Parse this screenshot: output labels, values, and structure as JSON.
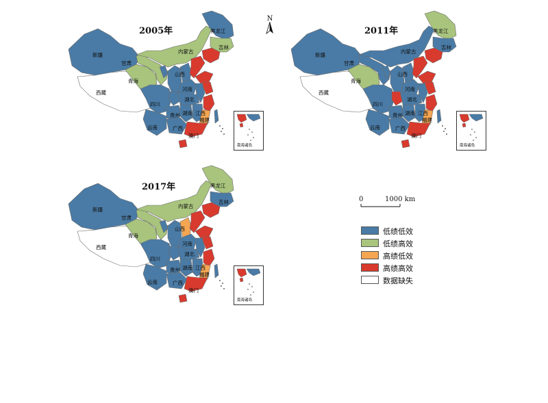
{
  "colors": {
    "low_low": "#4a7ba6",
    "low_high": "#a8c47d",
    "high_low": "#f4a653",
    "high_high": "#d93a2e",
    "missing": "#ffffff"
  },
  "north_label": "N",
  "scale": {
    "start": "0",
    "end": "1000 km"
  },
  "legend": [
    {
      "label": "低绩低效",
      "category": "low_low"
    },
    {
      "label": "低绩高效",
      "category": "low_high"
    },
    {
      "label": "高绩低效",
      "category": "high_low"
    },
    {
      "label": "高绩高效",
      "category": "high_high"
    },
    {
      "label": "数据缺失",
      "category": "missing"
    }
  ],
  "inset_label": "南海诸岛",
  "maps": [
    {
      "year": "2005年",
      "labels": {
        "xinjiang": "新疆",
        "xizang": "西藏",
        "qinghai": "青海",
        "gansu": "甘肃",
        "neimenggu": "内蒙古",
        "heilongjiang": "黑龙江",
        "jilin": "吉林",
        "sichuan": "四川",
        "yunnan": "云南",
        "guizhou": "贵州",
        "guangxi": "广西",
        "hunan": "湖南",
        "hubei": "湖北",
        "henan": "河南",
        "jiangxi": "江西",
        "fujian": "福建",
        "aomen": "澳门",
        "shanxi": "山西"
      },
      "regions": {
        "xinjiang": "low_low",
        "xizang": "missing",
        "qinghai": "low_high",
        "gansu": "low_high",
        "neimenggu": "low_high",
        "heilongjiang": "low_low",
        "jilin": "low_high",
        "liaoning": "high_high",
        "ningxia": "low_low",
        "shaanxi": "low_low",
        "shanxi": "low_low",
        "hebei": "high_high",
        "shandong": "high_high",
        "henan": "low_low",
        "sichuan": "low_low",
        "chongqing": "low_low",
        "hubei": "low_low",
        "anhui": "low_low",
        "jiangsu": "high_high",
        "zhejiang": "high_high",
        "yunnan": "low_low",
        "guizhou": "low_low",
        "hunan": "low_low",
        "jiangxi": "low_low",
        "fujian": "high_low",
        "guangxi": "low_low",
        "guangdong": "high_high",
        "hainan": "high_high"
      }
    },
    {
      "year": "2011年",
      "labels": {
        "xinjiang": "新疆",
        "xizang": "西藏",
        "qinghai": "青海",
        "gansu": "甘肃",
        "neimenggu": "内蒙古",
        "heilongjiang": "黑龙江",
        "jilin": "吉林",
        "sichuan": "四川",
        "yunnan": "云南",
        "guizhou": "贵州",
        "guangxi": "广西",
        "hunan": "湖南",
        "hubei": "湖北",
        "henan": "河南",
        "jiangxi": "江西",
        "fujian": "福建",
        "aomen": "澳门",
        "shanxi": "山西"
      },
      "regions": {
        "xinjiang": "low_low",
        "xizang": "missing",
        "qinghai": "low_high",
        "gansu": "low_low",
        "neimenggu": "low_low",
        "heilongjiang": "low_high",
        "jilin": "low_low",
        "liaoning": "high_high",
        "ningxia": "low_low",
        "shaanxi": "low_low",
        "shanxi": "low_low",
        "hebei": "high_high",
        "shandong": "high_high",
        "henan": "low_low",
        "sichuan": "low_low",
        "chongqing": "high_high",
        "hubei": "low_low",
        "anhui": "low_low",
        "jiangsu": "high_high",
        "zhejiang": "high_high",
        "yunnan": "low_low",
        "guizhou": "low_low",
        "hunan": "low_low",
        "jiangxi": "low_low",
        "fujian": "high_low",
        "guangxi": "low_low",
        "guangdong": "high_high",
        "hainan": "high_high"
      }
    },
    {
      "year": "2017年",
      "labels": {
        "xinjiang": "新疆",
        "xizang": "西藏",
        "qinghai": "青海",
        "gansu": "甘肃",
        "neimenggu": "内蒙古",
        "heilongjiang": "黑龙江",
        "jilin": "吉林",
        "sichuan": "四川",
        "yunnan": "云南",
        "guizhou": "贵州",
        "guangxi": "广西",
        "hunan": "湖南",
        "hubei": "湖北",
        "henan": "河南",
        "jiangxi": "江西",
        "fujian": "福建",
        "aomen": "澳门",
        "shanxi": "山西"
      },
      "regions": {
        "xinjiang": "low_low",
        "xizang": "missing",
        "qinghai": "low_high",
        "gansu": "low_high",
        "neimenggu": "low_high",
        "heilongjiang": "low_high",
        "jilin": "low_low",
        "liaoning": "high_high",
        "ningxia": "low_low",
        "shaanxi": "low_low",
        "shanxi": "high_low",
        "hebei": "high_high",
        "shandong": "high_high",
        "henan": "low_low",
        "sichuan": "low_low",
        "chongqing": "low_low",
        "hubei": "low_low",
        "anhui": "low_low",
        "jiangsu": "high_high",
        "zhejiang": "high_high",
        "yunnan": "low_low",
        "guizhou": "low_low",
        "hunan": "low_low",
        "jiangxi": "low_low",
        "fujian": "high_low",
        "guangxi": "low_low",
        "guangdong": "high_high",
        "hainan": "high_high"
      }
    }
  ]
}
